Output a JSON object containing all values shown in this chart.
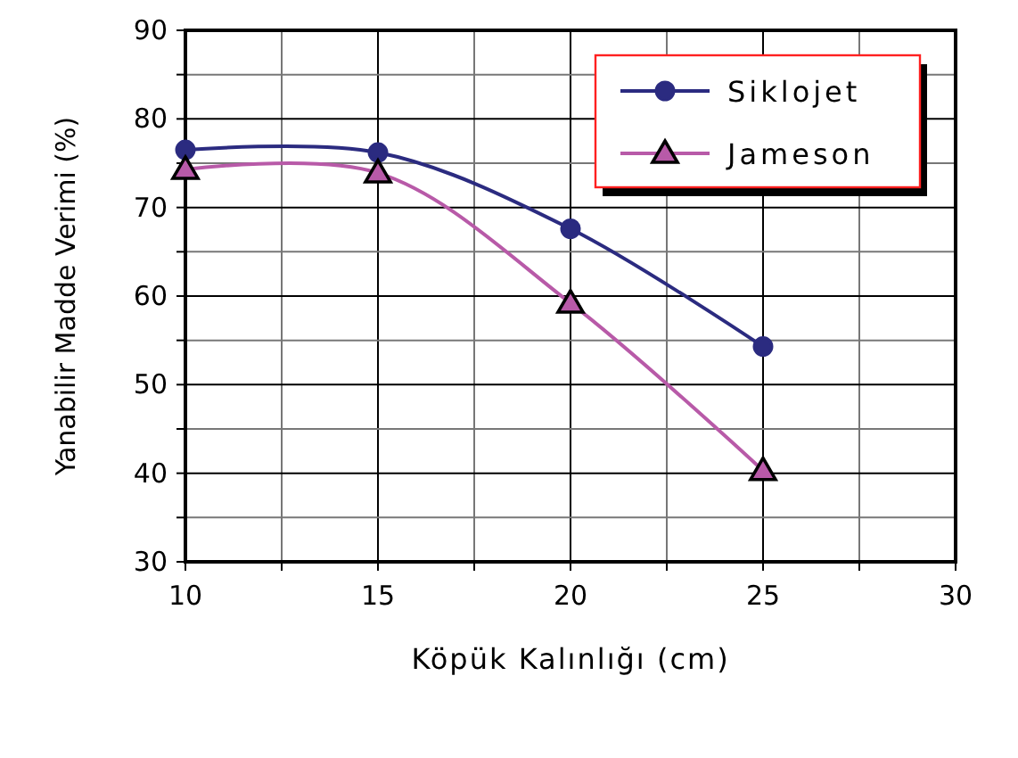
{
  "chart_data": {
    "type": "line",
    "xlabel": "Köpük Kalınlığı (cm)",
    "ylabel": "Yanabilir Madde Verimi (%)",
    "x": [
      10,
      15,
      20,
      25
    ],
    "series": [
      {
        "name": "Siklojet",
        "color": "#2b2b80",
        "marker": "circle",
        "values": [
          76.5,
          76.2,
          67.6,
          54.3
        ]
      },
      {
        "name": "Jameson",
        "color": "#b85aa8",
        "marker": "triangle",
        "values": [
          74.3,
          73.9,
          59.2,
          40.3
        ]
      }
    ],
    "xlim": [
      10,
      30
    ],
    "xticks": [
      10,
      {
        "value": 12.5,
        "label": null
      },
      15,
      {
        "value": 17.5,
        "label": null
      },
      20,
      {
        "value": 22.5,
        "label": null
      },
      25,
      {
        "value": 27.5,
        "label": null
      },
      30
    ],
    "ylim": [
      30,
      90
    ],
    "yticks": [
      30,
      {
        "value": 35,
        "label": null
      },
      40,
      {
        "value": 45,
        "label": null
      },
      50,
      {
        "value": 55,
        "label": null
      },
      60,
      {
        "value": 65,
        "label": null
      },
      70,
      {
        "value": 75,
        "label": null
      },
      80,
      {
        "value": 85,
        "label": null
      },
      90
    ],
    "grid": true,
    "legend": "top right",
    "line_style": "solid"
  }
}
